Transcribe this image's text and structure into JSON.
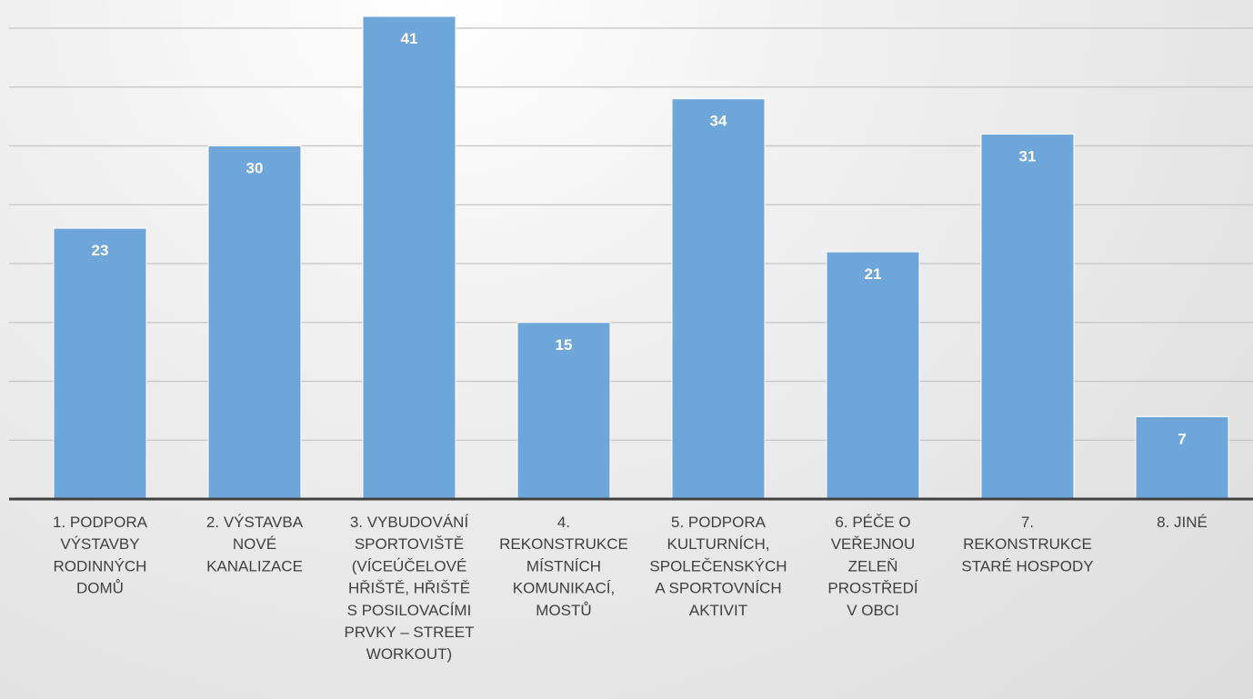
{
  "chart_data": {
    "type": "bar",
    "title": "",
    "xlabel": "",
    "ylabel": "",
    "ylim": [
      0,
      42
    ],
    "grid": true,
    "legend": "none",
    "data_labels": true,
    "categories": [
      [
        "1. PODPORA",
        "VÝSTAVBY",
        "RODINNÝCH",
        "DOMŮ"
      ],
      [
        "2. VÝSTAVBA",
        "NOVÉ",
        "KANALIZACE"
      ],
      [
        "3. VYBUDOVÁNÍ",
        "SPORTOVIŠTĚ",
        "(VÍCEÚČELOVÉ",
        "HŘIŠTĚ, HŘIŠTĚ",
        "S POSILOVACÍMI",
        "PRVKY – STREET",
        "WORKOUT)"
      ],
      [
        "4.",
        "REKONSTRUKCE",
        "MÍSTNÍCH",
        "KOMUNIKACÍ,",
        "MOSTŮ"
      ],
      [
        "5. PODPORA",
        "KULTURNÍCH,",
        "SPOLEČENSKÝCH",
        "A SPORTOVNÍCH",
        "AKTIVIT"
      ],
      [
        "6. PÉČE O",
        "VEŘEJNOU",
        "ZELEŇ",
        "PROSTŘEDÍ",
        "V OBCI"
      ],
      [
        "7.",
        "REKONSTRUKCE",
        "STARÉ HOSPODY"
      ],
      [
        "8. JINÉ"
      ]
    ],
    "values": [
      23,
      30,
      41,
      15,
      34,
      21,
      31,
      7
    ],
    "colors": {
      "bar": "#6fa6da",
      "bar_border": "#ffffff",
      "data_label": "#ffffff",
      "axis": "#404040",
      "grid": "#c4c4c4",
      "category_text": "#404040"
    }
  }
}
